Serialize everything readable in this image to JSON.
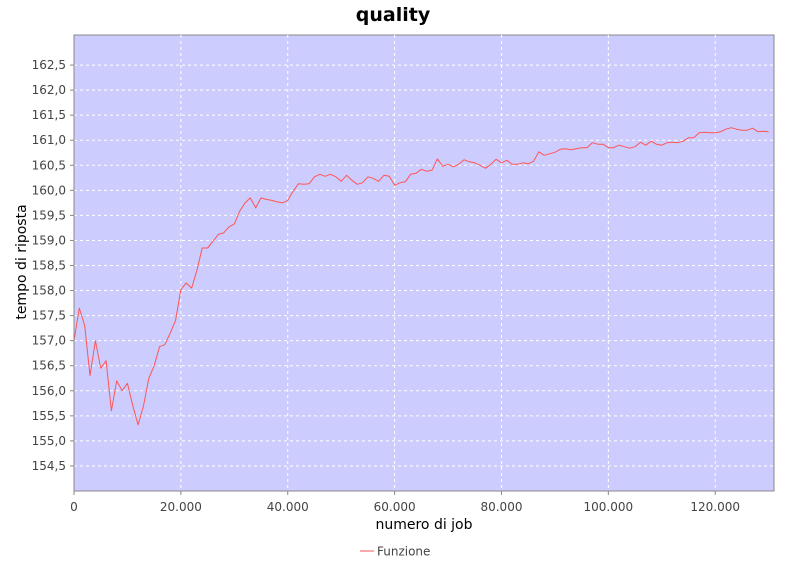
{
  "chart_data": {
    "type": "line",
    "title": "quality",
    "xlabel": "numero di job",
    "ylabel": "tempo di riposta",
    "xlim": [
      0,
      131000
    ],
    "ylim": [
      154.0,
      163.1
    ],
    "x_ticks": [
      0,
      20000,
      40000,
      60000,
      80000,
      100000,
      120000
    ],
    "x_tick_labels": [
      "0",
      "20.000",
      "40.000",
      "60.000",
      "80.000",
      "100.000",
      "120.000"
    ],
    "y_ticks": [
      154.5,
      155.0,
      155.5,
      156.0,
      156.5,
      157.0,
      157.5,
      158.0,
      158.5,
      159.0,
      159.5,
      160.0,
      160.5,
      161.0,
      161.5,
      162.0,
      162.5
    ],
    "y_tick_labels": [
      "154,5",
      "155,0",
      "155,5",
      "156,0",
      "156,5",
      "157,0",
      "157,5",
      "158,0",
      "158,5",
      "159,0",
      "159,5",
      "160,0",
      "160,5",
      "161,0",
      "161,5",
      "162,0",
      "162,5"
    ],
    "grid": true,
    "legend_position": "bottom-center",
    "colors": {
      "plot_background": "#ccccff",
      "gridline": "#ffffff",
      "series": "#ff5555"
    },
    "series": [
      {
        "name": "Funzione",
        "x": [
          0,
          1000,
          2000,
          3000,
          4000,
          5000,
          6000,
          7000,
          8000,
          9000,
          10000,
          11000,
          12000,
          13000,
          14000,
          15000,
          16000,
          17000,
          18000,
          19000,
          20000,
          21000,
          22000,
          23000,
          24000,
          25000,
          26000,
          27000,
          28000,
          29000,
          30000,
          31000,
          32000,
          33000,
          34000,
          35000,
          36000,
          37000,
          38000,
          39000,
          40000,
          41000,
          42000,
          43000,
          44000,
          45000,
          46000,
          47000,
          48000,
          49000,
          50000,
          51000,
          52000,
          53000,
          54000,
          55000,
          56000,
          57000,
          58000,
          59000,
          60000,
          61000,
          62000,
          63000,
          64000,
          65000,
          66000,
          67000,
          68000,
          69000,
          70000,
          71000,
          72000,
          73000,
          74000,
          75000,
          76000,
          77000,
          78000,
          79000,
          80000,
          81000,
          82000,
          83000,
          84000,
          85000,
          86000,
          87000,
          88000,
          89000,
          90000,
          91000,
          92000,
          93000,
          94000,
          95000,
          96000,
          97000,
          98000,
          99000,
          100000,
          101000,
          102000,
          103000,
          104000,
          105000,
          106000,
          107000,
          108000,
          109000,
          110000,
          111000,
          112000,
          113000,
          114000,
          115000,
          116000,
          117000,
          118000,
          119000,
          120000,
          121000,
          122000,
          123000,
          124000,
          125000,
          126000,
          127000,
          128000,
          129000,
          130000
        ],
        "y": [
          157.0,
          157.65,
          157.3,
          156.3,
          157.0,
          156.45,
          156.6,
          155.6,
          156.2,
          156.0,
          156.15,
          155.7,
          155.32,
          155.7,
          156.25,
          156.5,
          156.88,
          156.92,
          157.15,
          157.4,
          158.02,
          158.15,
          158.05,
          158.4,
          158.85,
          158.85,
          158.98,
          159.12,
          159.15,
          159.27,
          159.33,
          159.58,
          159.75,
          159.85,
          159.65,
          159.85,
          159.82,
          159.8,
          159.77,
          159.75,
          159.8,
          159.98,
          160.13,
          160.12,
          160.13,
          160.27,
          160.32,
          160.28,
          160.32,
          160.27,
          160.18,
          160.3,
          160.2,
          160.12,
          160.15,
          160.27,
          160.24,
          160.18,
          160.3,
          160.28,
          160.1,
          160.15,
          160.17,
          160.32,
          160.34,
          160.42,
          160.38,
          160.4,
          160.63,
          160.48,
          160.52,
          160.47,
          160.52,
          160.61,
          160.57,
          160.55,
          160.5,
          160.44,
          160.52,
          160.62,
          160.55,
          160.6,
          160.52,
          160.52,
          160.55,
          160.53,
          160.58,
          160.77,
          160.7,
          160.73,
          160.76,
          160.82,
          160.83,
          160.81,
          160.83,
          160.85,
          160.85,
          160.95,
          160.92,
          160.92,
          160.85,
          160.85,
          160.9,
          160.87,
          160.84,
          160.87,
          160.96,
          160.9,
          160.98,
          160.92,
          160.9,
          160.95,
          160.96,
          160.95,
          160.98,
          161.05,
          161.05,
          161.15,
          161.16,
          161.15,
          161.15,
          161.17,
          161.22,
          161.25,
          161.22,
          161.2,
          161.2,
          161.24,
          161.17,
          161.18,
          161.17
        ]
      }
    ]
  }
}
